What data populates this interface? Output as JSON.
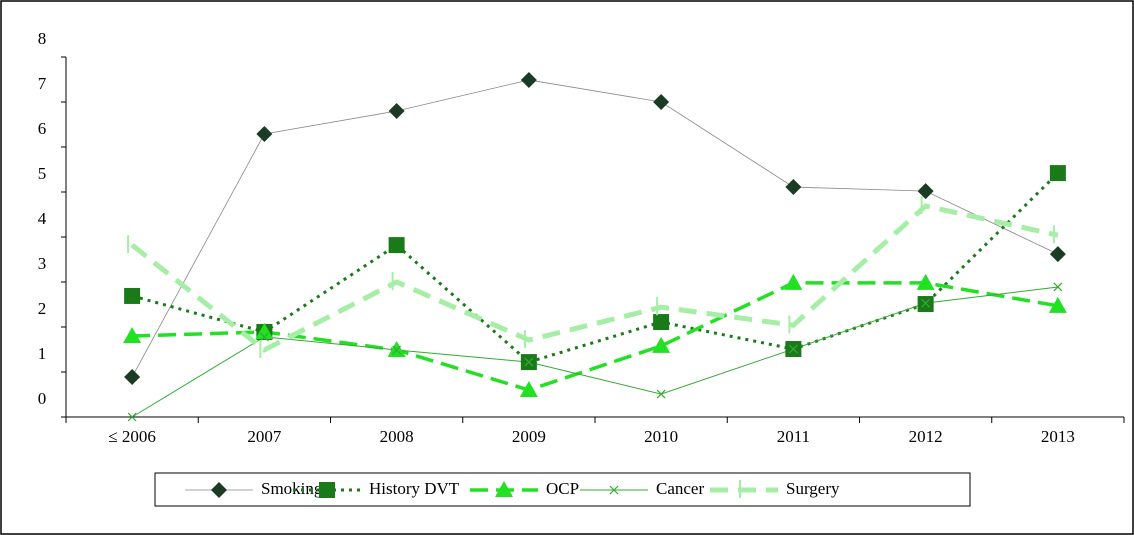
{
  "chart_data": {
    "type": "line",
    "categories": [
      "≤ 2006",
      "2007",
      "2008",
      "2009",
      "2010",
      "2011",
      "2012",
      "2013"
    ],
    "series": [
      {
        "name": "Smoking",
        "color": "#1b3b24",
        "values": [
          0.89,
          6.29,
          6.8,
          7.49,
          7.0,
          5.11,
          5.02,
          3.62
        ]
      },
      {
        "name": "History DVT",
        "color": "#1a7a1a",
        "values": [
          2.69,
          1.89,
          3.82,
          1.22,
          2.11,
          1.51,
          2.51,
          5.42
        ]
      },
      {
        "name": "OCP",
        "color": "#22e022",
        "values": [
          1.8,
          1.89,
          1.49,
          0.6,
          1.58,
          2.98,
          2.98,
          2.47
        ]
      },
      {
        "name": "Cancer",
        "color": "#33aa33",
        "values": [
          0,
          1.78,
          1.49,
          1.22,
          0.51,
          1.51,
          2.53,
          2.89
        ]
      },
      {
        "name": "Surgery",
        "color": "#a6eda6",
        "values": [
          3.82,
          1.49,
          3.0,
          1.71,
          2.44,
          2.04,
          4.69,
          4.04
        ]
      }
    ],
    "ylim": [
      0,
      8
    ],
    "yticks": [
      0,
      1,
      2,
      3,
      4,
      5,
      6,
      7,
      8
    ],
    "grid": false,
    "legend": "bottom"
  }
}
